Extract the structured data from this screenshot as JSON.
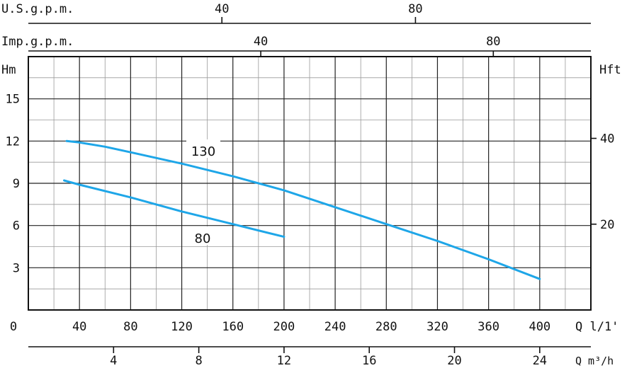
{
  "chart_data": {
    "type": "line",
    "grid": true,
    "axes": {
      "usgpm": {
        "label": "U.S.g.p.m.",
        "ticks": [
          "40",
          "80"
        ],
        "tick_values_lpm": [
          151.4,
          302.8
        ]
      },
      "impgpm": {
        "label": "Imp.g.p.m.",
        "ticks": [
          "40",
          "80"
        ],
        "tick_values_lpm": [
          181.8,
          363.7
        ]
      },
      "x_lpm": {
        "label": "Q l/1'",
        "ticks": [
          "0",
          "40",
          "80",
          "120",
          "160",
          "200",
          "240",
          "280",
          "320",
          "360",
          "400"
        ],
        "range": [
          0,
          440
        ]
      },
      "x_m3h": {
        "label": "Q m³/h",
        "ticks": [
          "4",
          "8",
          "12",
          "16",
          "20",
          "24"
        ]
      },
      "y_left": {
        "label": "Hm",
        "ticks": [
          "3",
          "6",
          "9",
          "12",
          "15"
        ],
        "range": [
          0,
          18
        ]
      },
      "y_right": {
        "label": "Hft",
        "ticks": [
          "20",
          "40"
        ]
      }
    },
    "series": [
      {
        "name": "130",
        "color": "#1ea6e8",
        "x": [
          30,
          40,
          60,
          80,
          120,
          160,
          200,
          240,
          280,
          320,
          360,
          400
        ],
        "y": [
          12.0,
          11.9,
          11.6,
          11.2,
          10.4,
          9.5,
          8.5,
          7.3,
          6.1,
          4.9,
          3.6,
          2.2
        ]
      },
      {
        "name": "80",
        "color": "#1ea6e8",
        "x": [
          28,
          40,
          80,
          120,
          160,
          200
        ],
        "y": [
          9.2,
          8.9,
          8.0,
          7.0,
          6.1,
          5.2
        ]
      }
    ]
  }
}
